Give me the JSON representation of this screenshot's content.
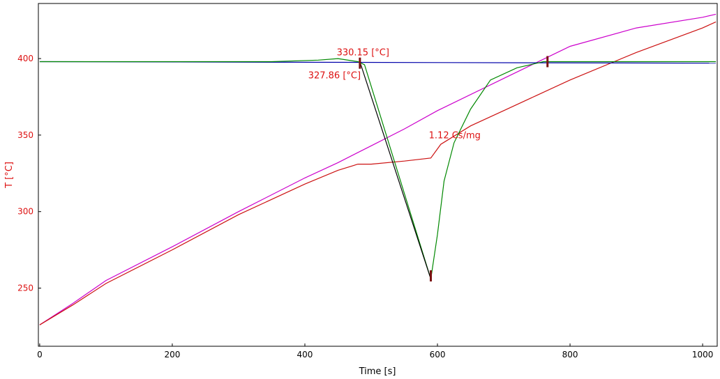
{
  "chart_data": {
    "type": "line",
    "xlabel": "Time [s]",
    "ylabel": "T  [°C]",
    "xlim": [
      -2,
      1022
    ],
    "ylim": [
      212,
      436
    ],
    "x_ticks": [
      0,
      200,
      400,
      600,
      800,
      1000
    ],
    "y_ticks": [
      250,
      300,
      350,
      400
    ],
    "grid": false,
    "colors": {
      "axis_text": "#000000",
      "y_axis_text": "#dd1111",
      "annotation": "#dd1111",
      "marker": "#7a1010"
    },
    "series": [
      {
        "color": "#cc00cc",
        "points": [
          [
            0,
            226
          ],
          [
            50,
            240
          ],
          [
            100,
            255
          ],
          [
            200,
            277
          ],
          [
            300,
            300
          ],
          [
            400,
            322
          ],
          [
            450,
            332
          ],
          [
            500,
            343
          ],
          [
            550,
            354
          ],
          [
            600,
            366
          ],
          [
            700,
            387
          ],
          [
            800,
            408
          ],
          [
            900,
            420
          ],
          [
            1000,
            427
          ],
          [
            1020,
            429
          ]
        ]
      },
      {
        "color": "#cc1111",
        "points": [
          [
            0,
            226
          ],
          [
            50,
            239
          ],
          [
            100,
            253
          ],
          [
            200,
            275
          ],
          [
            300,
            298
          ],
          [
            400,
            318
          ],
          [
            450,
            327
          ],
          [
            480,
            331
          ],
          [
            500,
            331
          ],
          [
            550,
            333
          ],
          [
            590,
            335
          ],
          [
            605,
            344
          ],
          [
            650,
            356
          ],
          [
            700,
            366
          ],
          [
            750,
            376
          ],
          [
            800,
            386
          ],
          [
            900,
            404
          ],
          [
            1000,
            420
          ],
          [
            1020,
            424
          ]
        ]
      },
      {
        "color": "#0000aa",
        "points": [
          [
            0,
            398
          ],
          [
            1020,
            397
          ]
        ]
      },
      {
        "color": "#008800",
        "points": [
          [
            0,
            398
          ],
          [
            350,
            398
          ],
          [
            420,
            399
          ],
          [
            450,
            400
          ],
          [
            480,
            398
          ],
          [
            490,
            396
          ],
          [
            590,
            256
          ],
          [
            600,
            285
          ],
          [
            610,
            320
          ],
          [
            625,
            345
          ],
          [
            650,
            367
          ],
          [
            680,
            386
          ],
          [
            720,
            394
          ],
          [
            760,
            398
          ],
          [
            800,
            398
          ],
          [
            1020,
            398
          ]
        ]
      },
      {
        "color": "#000000",
        "points": [
          [
            483,
            398
          ],
          [
            590,
            256
          ]
        ]
      }
    ],
    "annotations": [
      {
        "text": "330.15 [°C]",
        "x": 448,
        "y": 402
      },
      {
        "text": "327.86 [°C]",
        "x": 405,
        "y": 387
      },
      {
        "text": "1.12 Cs/mg",
        "x": 587,
        "y": 348
      }
    ],
    "markers": [
      {
        "x": 483,
        "y": 397
      },
      {
        "x": 590,
        "y": 258
      },
      {
        "x": 766,
        "y": 398
      }
    ]
  }
}
